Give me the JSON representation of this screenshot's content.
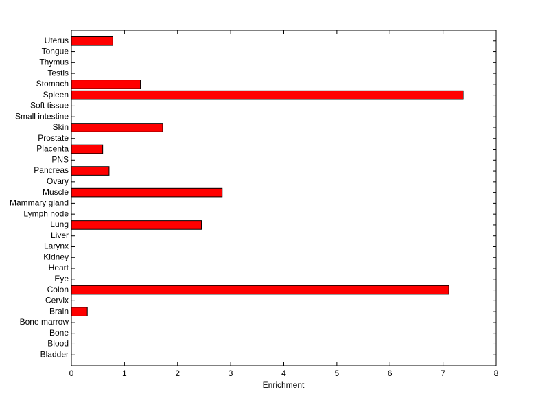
{
  "chart_data": {
    "type": "barh",
    "xlabel": "Enrichment",
    "categories": [
      "Bladder",
      "Blood",
      "Bone",
      "Bone marrow",
      "Brain",
      "Cervix",
      "Colon",
      "Eye",
      "Heart",
      "Kidney",
      "Larynx",
      "Liver",
      "Lung",
      "Lymph node",
      "Mammary gland",
      "Muscle",
      "Ovary",
      "Pancreas",
      "PNS",
      "Placenta",
      "Prostate",
      "Skin",
      "Small intestine",
      "Soft tissue",
      "Spleen",
      "Stomach",
      "Testis",
      "Thymus",
      "Tongue",
      "Uterus"
    ],
    "values": [
      0,
      0,
      0,
      0,
      0.3,
      0,
      7.11,
      0,
      0,
      0,
      0,
      0,
      2.45,
      0,
      0,
      2.84,
      0,
      0.71,
      0,
      0.59,
      0,
      1.72,
      0,
      0,
      7.38,
      1.3,
      0,
      0,
      0,
      0.78
    ],
    "color": "#ff0000",
    "xlim": [
      0,
      8
    ],
    "xticks": [
      0,
      1,
      2,
      3,
      4,
      5,
      6,
      7,
      8
    ],
    "grid": false
  }
}
